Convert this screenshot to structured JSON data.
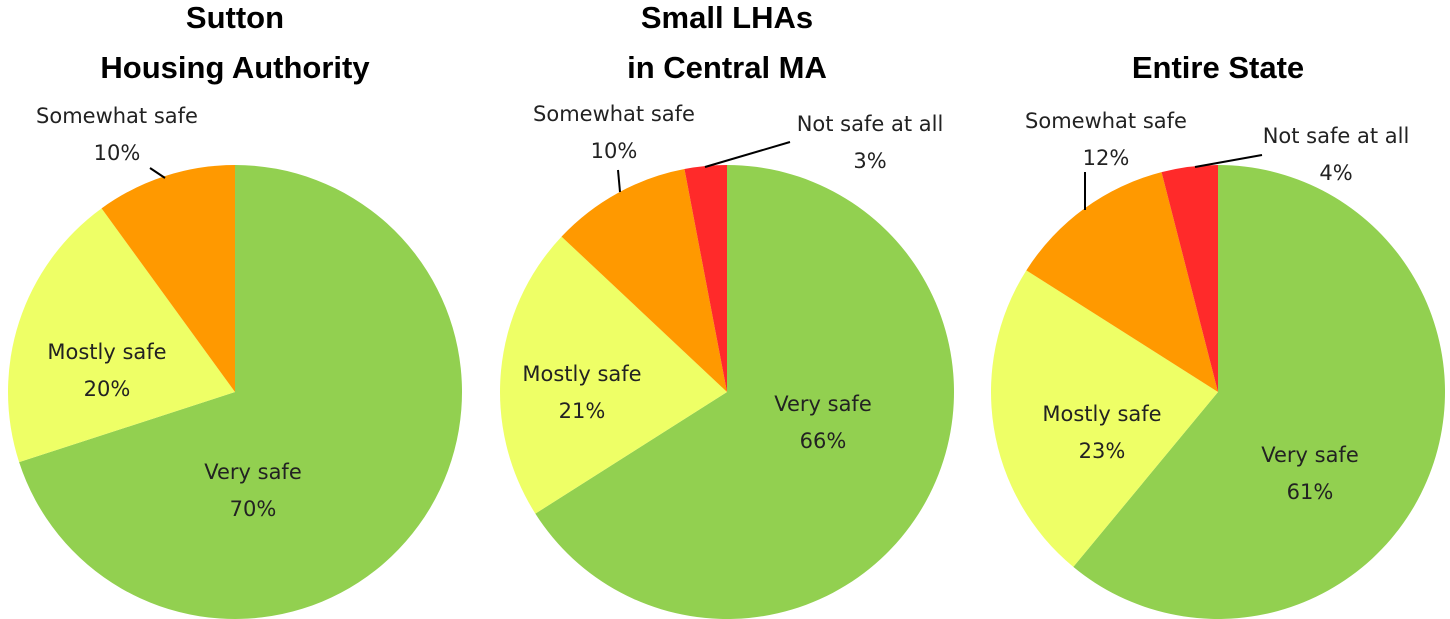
{
  "chart_data": [
    {
      "type": "pie",
      "title": [
        "Sutton",
        "Housing Authority"
      ],
      "categories": [
        "Very safe",
        "Mostly safe",
        "Somewhat safe"
      ],
      "values": [
        70,
        20,
        10
      ],
      "value_labels": [
        "70%",
        "20%",
        "10%"
      ],
      "colors": [
        "#92d050",
        "#eeff66",
        "#ff9900"
      ]
    },
    {
      "type": "pie",
      "title": [
        "Small LHAs",
        "in Central MA"
      ],
      "categories": [
        "Very safe",
        "Mostly safe",
        "Somewhat safe",
        "Not safe at all"
      ],
      "values": [
        66,
        21,
        10,
        3
      ],
      "value_labels": [
        "66%",
        "21%",
        "10%",
        "3%"
      ],
      "colors": [
        "#92d050",
        "#eeff66",
        "#ff9900",
        "#ff2a2a"
      ]
    },
    {
      "type": "pie",
      "title": [
        "Entire State"
      ],
      "categories": [
        "Very safe",
        "Mostly safe",
        "Somewhat safe",
        "Not safe at all"
      ],
      "values": [
        61,
        23,
        12,
        4
      ],
      "value_labels": [
        "61%",
        "23%",
        "12%",
        "4%"
      ],
      "colors": [
        "#92d050",
        "#eeff66",
        "#ff9900",
        "#ff2a2a"
      ]
    }
  ]
}
